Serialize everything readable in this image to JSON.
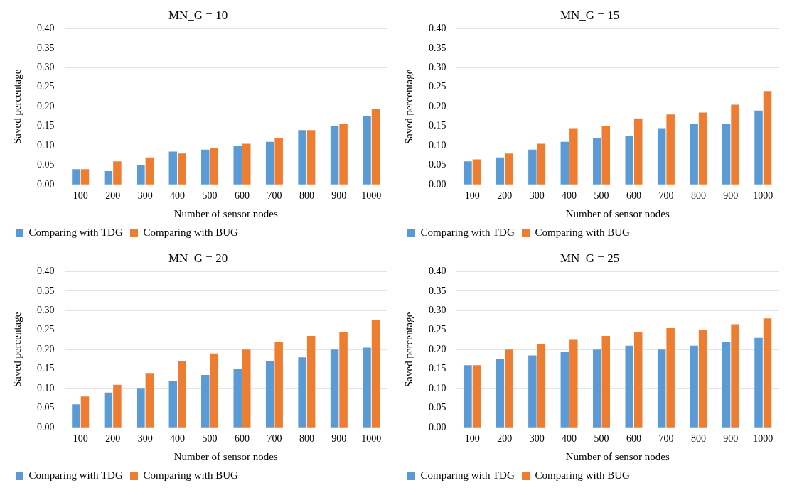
{
  "chart_data": [
    {
      "type": "bar",
      "title": "MN_G = 10",
      "xlabel": "Number of sensor nodes",
      "ylabel": "Saved percentage",
      "categories": [
        "100",
        "200",
        "300",
        "400",
        "500",
        "600",
        "700",
        "800",
        "900",
        "1000"
      ],
      "series": [
        {
          "name": "Comparing with TDG",
          "color": "#5b9bd5",
          "values": [
            0.04,
            0.035,
            0.05,
            0.085,
            0.09,
            0.1,
            0.11,
            0.14,
            0.15,
            0.175
          ]
        },
        {
          "name": "Comparing with BUG",
          "color": "#ed7d31",
          "values": [
            0.04,
            0.06,
            0.07,
            0.08,
            0.095,
            0.105,
            0.12,
            0.14,
            0.155,
            0.195
          ]
        }
      ],
      "ylim": [
        0,
        0.4
      ],
      "yticks": [
        {
          "value": 0,
          "label": "0.00"
        },
        {
          "value": 0.05,
          "label": "0.05"
        },
        {
          "value": 0.1,
          "label": "0.10"
        },
        {
          "value": 0.15,
          "label": "0.15"
        },
        {
          "value": 0.2,
          "label": "0.20"
        },
        {
          "value": 0.25,
          "label": "0.25"
        },
        {
          "value": 0.3,
          "label": "0.30"
        },
        {
          "value": 0.35,
          "label": "0.35"
        },
        {
          "value": 0.4,
          "label": "0.40"
        }
      ],
      "grid": "y",
      "legend": "bottom"
    },
    {
      "type": "bar",
      "title": "MN_G = 15",
      "xlabel": "Number of sensor nodes",
      "ylabel": "Saved percentage",
      "categories": [
        "100",
        "200",
        "300",
        "400",
        "500",
        "600",
        "700",
        "800",
        "900",
        "1000"
      ],
      "series": [
        {
          "name": "Comparing with TDG",
          "color": "#5b9bd5",
          "values": [
            0.06,
            0.07,
            0.09,
            0.11,
            0.12,
            0.125,
            0.145,
            0.155,
            0.155,
            0.19
          ]
        },
        {
          "name": "Comparing with BUG",
          "color": "#ed7d31",
          "values": [
            0.065,
            0.08,
            0.105,
            0.145,
            0.15,
            0.17,
            0.18,
            0.185,
            0.205,
            0.24
          ]
        }
      ],
      "ylim": [
        0,
        0.4
      ],
      "yticks": [
        {
          "value": 0,
          "label": "0.00"
        },
        {
          "value": 0.05,
          "label": "0.05"
        },
        {
          "value": 0.1,
          "label": "0.10"
        },
        {
          "value": 0.15,
          "label": "0.15"
        },
        {
          "value": 0.2,
          "label": "0.20"
        },
        {
          "value": 0.25,
          "label": "0.25"
        },
        {
          "value": 0.3,
          "label": "0.30"
        },
        {
          "value": 0.35,
          "label": "0.35"
        },
        {
          "value": 0.4,
          "label": "0.40"
        }
      ],
      "grid": "y",
      "legend": "bottom"
    },
    {
      "type": "bar",
      "title": "MN_G = 20",
      "xlabel": "Number of sensor nodes",
      "ylabel": "Saved percentage",
      "categories": [
        "100",
        "200",
        "300",
        "400",
        "500",
        "600",
        "700",
        "800",
        "900",
        "1000"
      ],
      "series": [
        {
          "name": "Comparing with TDG",
          "color": "#5b9bd5",
          "values": [
            0.06,
            0.09,
            0.1,
            0.12,
            0.135,
            0.15,
            0.17,
            0.18,
            0.2,
            0.205
          ]
        },
        {
          "name": "Comparing with BUG",
          "color": "#ed7d31",
          "values": [
            0.08,
            0.11,
            0.14,
            0.17,
            0.19,
            0.2,
            0.22,
            0.235,
            0.245,
            0.275
          ]
        }
      ],
      "ylim": [
        0,
        0.4
      ],
      "yticks": [
        {
          "value": 0,
          "label": "0.00"
        },
        {
          "value": 0.05,
          "label": "0.05"
        },
        {
          "value": 0.1,
          "label": "0.10"
        },
        {
          "value": 0.15,
          "label": "0.15"
        },
        {
          "value": 0.2,
          "label": "0.20"
        },
        {
          "value": 0.25,
          "label": "0.25"
        },
        {
          "value": 0.3,
          "label": "0.30"
        },
        {
          "value": 0.35,
          "label": "0.35"
        },
        {
          "value": 0.4,
          "label": "0.40"
        }
      ],
      "grid": "y",
      "legend": "bottom"
    },
    {
      "type": "bar",
      "title": "MN_G = 25",
      "xlabel": "Number of sensor nodes",
      "ylabel": "Saved percentage",
      "categories": [
        "100",
        "200",
        "300",
        "400",
        "500",
        "600",
        "700",
        "800",
        "900",
        "1000"
      ],
      "series": [
        {
          "name": "Comparing with TDG",
          "color": "#5b9bd5",
          "values": [
            0.16,
            0.175,
            0.185,
            0.195,
            0.2,
            0.21,
            0.2,
            0.21,
            0.22,
            0.23
          ]
        },
        {
          "name": "Comparing with BUG",
          "color": "#ed7d31",
          "values": [
            0.16,
            0.2,
            0.215,
            0.225,
            0.235,
            0.245,
            0.255,
            0.25,
            0.265,
            0.28
          ]
        }
      ],
      "ylim": [
        0,
        0.4
      ],
      "yticks": [
        {
          "value": 0,
          "label": "0.00"
        },
        {
          "value": 0.05,
          "label": "0.05"
        },
        {
          "value": 0.1,
          "label": "0.10"
        },
        {
          "value": 0.15,
          "label": "0.15"
        },
        {
          "value": 0.2,
          "label": "0.20"
        },
        {
          "value": 0.25,
          "label": "0.25"
        },
        {
          "value": 0.3,
          "label": "0.30"
        },
        {
          "value": 0.35,
          "label": "0.35"
        },
        {
          "value": 0.4,
          "label": "0.40"
        }
      ],
      "grid": "y",
      "legend": "bottom"
    }
  ]
}
